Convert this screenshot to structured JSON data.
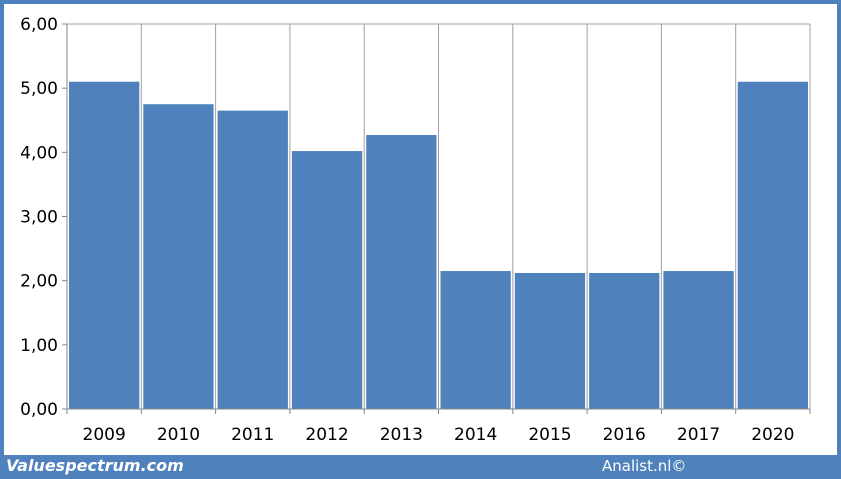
{
  "chart_data": {
    "type": "bar",
    "categories": [
      "2009",
      "2010",
      "2011",
      "2012",
      "2013",
      "2014",
      "2015",
      "2016",
      "2017",
      "2020"
    ],
    "values": [
      5.1,
      4.75,
      4.65,
      4.02,
      4.27,
      2.15,
      2.12,
      2.12,
      2.15,
      5.1
    ],
    "ylim": [
      0,
      6
    ],
    "yticks": [
      "0,00",
      "1,00",
      "2,00",
      "3,00",
      "4,00",
      "5,00",
      "6,00"
    ],
    "grid": "vertical",
    "legend": "none",
    "colors": {
      "bar": "#4f81bd",
      "frame": "#4f81bd",
      "grid": "#a0a0a0",
      "axis": "#868686"
    }
  },
  "footer": {
    "left_text": "Valuespectrum.com",
    "right_text": "Analist.nl©"
  }
}
